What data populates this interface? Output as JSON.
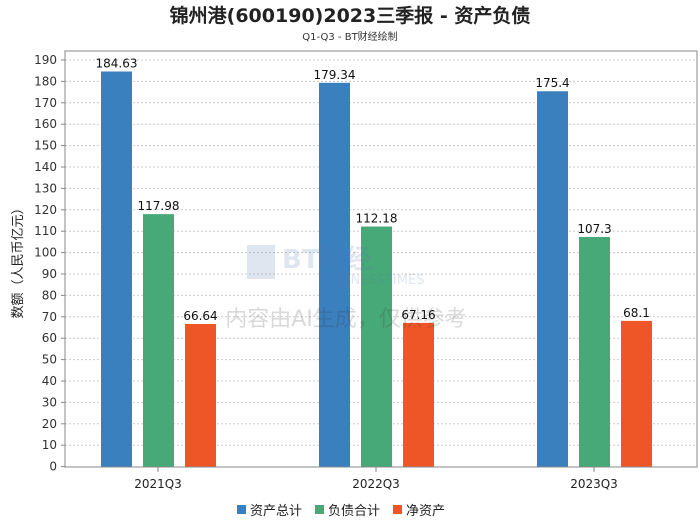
{
  "chart_data": {
    "type": "bar",
    "title": "锦州港(600190)2023三季报 - 资产负债",
    "subtitle": "Q1-Q3 - BT财经绘制",
    "xlabel": "",
    "ylabel": "数额（人民币亿元）",
    "ylim": [
      0,
      190
    ],
    "yticks": [
      0,
      10,
      20,
      30,
      40,
      50,
      60,
      70,
      80,
      90,
      100,
      110,
      120,
      130,
      140,
      150,
      160,
      170,
      180,
      190
    ],
    "grid": true,
    "legend_position": "bottom",
    "categories": [
      "2021Q3",
      "2022Q3",
      "2023Q3"
    ],
    "series": [
      {
        "name": "资产总计",
        "color": "#3a80bf",
        "values": [
          184.63,
          179.34,
          175.4
        ],
        "labels": [
          "184.63",
          "179.34",
          "175.4"
        ]
      },
      {
        "name": "负债合计",
        "color": "#48a978",
        "values": [
          117.98,
          112.18,
          107.3
        ],
        "labels": [
          "117.98",
          "112.18",
          "107.3"
        ]
      },
      {
        "name": "净资产",
        "color": "#ee5628",
        "values": [
          66.64,
          67.16,
          68.1
        ],
        "labels": [
          "66.64",
          "67.16",
          "68.1"
        ]
      }
    ]
  },
  "watermark": {
    "logo": "BT财经",
    "logo_sub": "BUSINESSTIMES",
    "notice": "内容由AI生成，仅供参考"
  }
}
